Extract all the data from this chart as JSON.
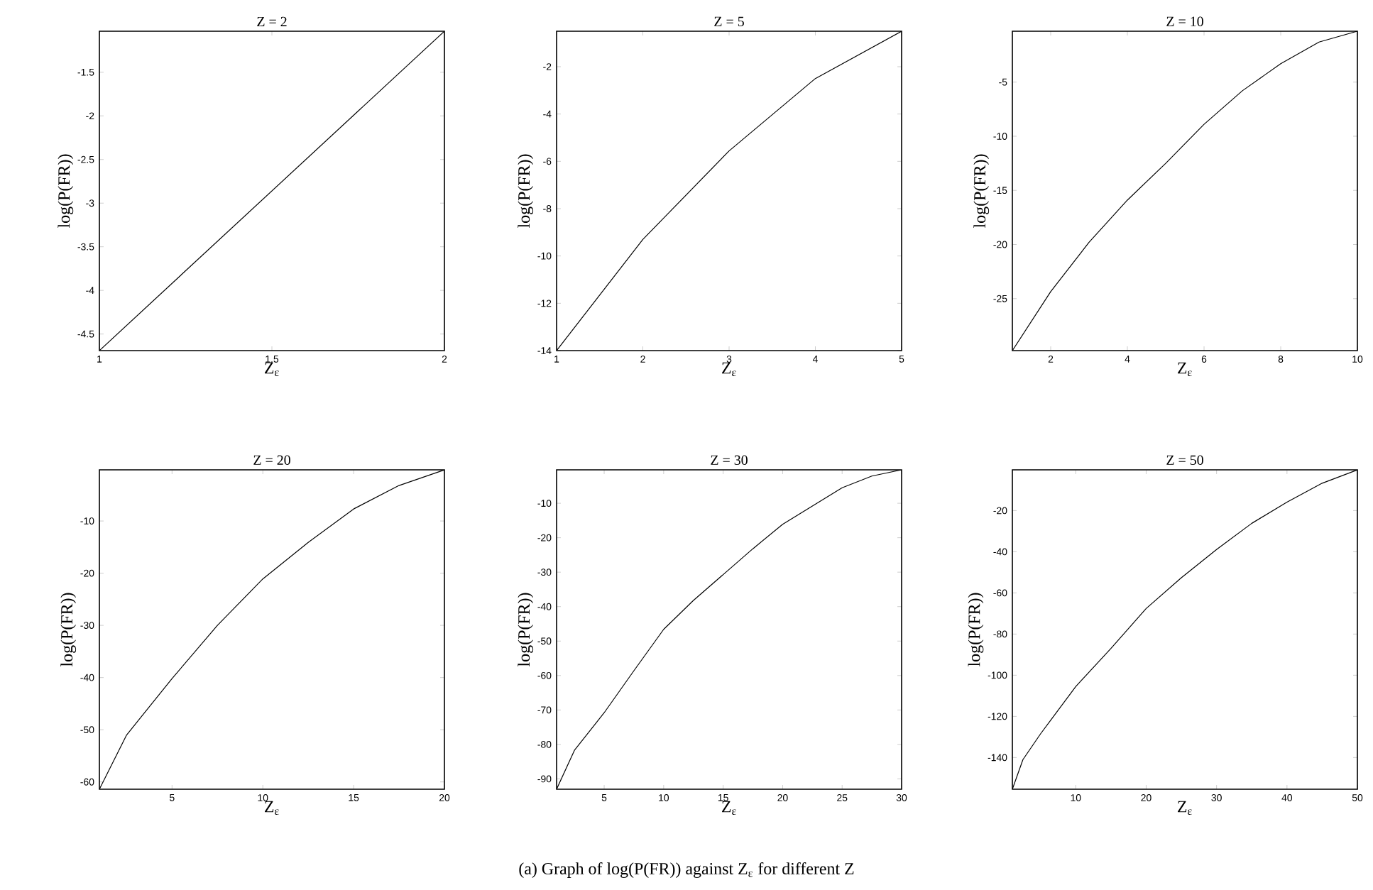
{
  "chart_data": [
    {
      "type": "line",
      "title": "Z = 2",
      "xlabel": "Z$_{ε}$",
      "ylabel": "log(P(FR))",
      "x": [
        1,
        2
      ],
      "xlim": [
        1,
        2
      ],
      "ylim": [
        -4.69,
        -1.03
      ],
      "xticks": [
        1,
        1.5,
        2
      ],
      "yticks": [
        -4.5,
        -4,
        -3.5,
        -3,
        -2.5,
        -2,
        -1.5
      ],
      "series": [
        {
          "color": "#000000",
          "values": [
            -4.69,
            -1.03
          ]
        }
      ]
    },
    {
      "type": "line",
      "title": "Z = 5",
      "xlabel": "Z$_{ε}$",
      "ylabel": "log(P(FR))",
      "x": [
        1,
        2,
        3,
        4,
        5
      ],
      "xlim": [
        1,
        5
      ],
      "ylim": [
        -14,
        -0.5
      ],
      "xticks": [
        1,
        2,
        3,
        4,
        5
      ],
      "yticks": [
        -14,
        -12,
        -10,
        -8,
        -6,
        -4,
        -2
      ],
      "series": [
        {
          "color": "#000000",
          "values": [
            -14,
            -9.3,
            -5.56,
            -2.5,
            -0.5
          ]
        }
      ]
    },
    {
      "type": "line",
      "title": "Z = 10",
      "xlabel": "Z$_{ε}$",
      "ylabel": "log(P(FR))",
      "x": [
        1,
        2,
        3,
        4,
        5,
        6,
        7,
        8,
        9,
        10
      ],
      "xlim": [
        1,
        10
      ],
      "ylim": [
        -29.8,
        -0.3
      ],
      "xticks": [
        2,
        4,
        6,
        8,
        10
      ],
      "yticks": [
        -25,
        -20,
        -15,
        -10,
        -5
      ],
      "series": [
        {
          "color": "#000000",
          "values": [
            -29.8,
            -24.35,
            -19.8,
            -15.9,
            -12.5,
            -8.9,
            -5.8,
            -3.3,
            -1.3,
            -0.3
          ]
        }
      ]
    },
    {
      "type": "line",
      "title": "Z = 20",
      "xlabel": "Z$_{ε}$",
      "ylabel": "log(P(FR))",
      "x": [
        1,
        2.5,
        5,
        7.5,
        10,
        12.5,
        15,
        17.5,
        20
      ],
      "xlim": [
        1,
        20
      ],
      "ylim": [
        -61.4,
        -0.2
      ],
      "xticks": [
        5,
        10,
        15,
        20
      ],
      "yticks": [
        -60,
        -50,
        -40,
        -30,
        -20,
        -10
      ],
      "series": [
        {
          "color": "#000000",
          "values": [
            -61.4,
            -51,
            -40.2,
            -30,
            -21.1,
            -14.1,
            -7.7,
            -3.2,
            -0.2
          ]
        }
      ]
    },
    {
      "type": "line",
      "title": "Z = 30",
      "xlabel": "Z$_{ε}$",
      "ylabel": "log(P(FR))",
      "x": [
        1,
        2.5,
        5,
        7.5,
        10,
        12.5,
        15,
        17.5,
        20,
        25,
        27.5,
        30
      ],
      "xlim": [
        1,
        30
      ],
      "ylim": [
        -93,
        -0.3
      ],
      "xticks": [
        5,
        10,
        15,
        20,
        25,
        30
      ],
      "yticks": [
        -90,
        -80,
        -70,
        -60,
        -50,
        -40,
        -30,
        -20,
        -10
      ],
      "series": [
        {
          "color": "#000000",
          "values": [
            -93,
            -81.7,
            -70.8,
            -58.6,
            -46.6,
            -38.2,
            -30.7,
            -23.2,
            -16.1,
            -5.5,
            -2.1,
            -0.3
          ]
        }
      ]
    },
    {
      "type": "line",
      "title": "Z = 50",
      "xlabel": "Z$_{ε}$",
      "ylabel": "log(P(FR))",
      "x": [
        1,
        2.5,
        5,
        10,
        15,
        20,
        25,
        30,
        35,
        40,
        45,
        50
      ],
      "xlim": [
        1,
        50
      ],
      "ylim": [
        -155.4,
        -0.2
      ],
      "xticks": [
        10,
        20,
        30,
        40,
        50
      ],
      "yticks": [
        -140,
        -120,
        -100,
        -80,
        -60,
        -40,
        -20
      ],
      "series": [
        {
          "color": "#000000",
          "values": [
            -155.4,
            -141,
            -128.5,
            -105.5,
            -87,
            -67.6,
            -52.6,
            -38.9,
            -26.2,
            -15.9,
            -6.7,
            -0.2
          ]
        }
      ]
    },
    {
      "type": "other",
      "annotations": [
        "(a) Graph of log(P(FR)) against Z$_{ε}$ for different Z"
      ]
    }
  ]
}
